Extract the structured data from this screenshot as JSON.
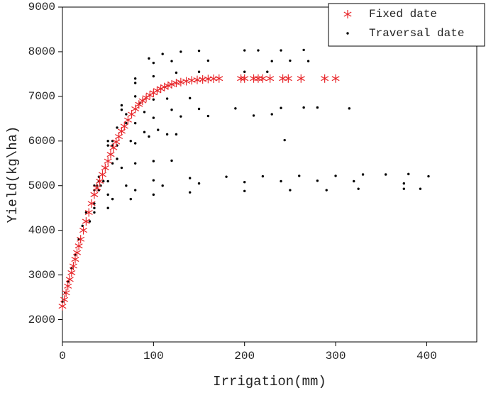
{
  "chart_data": {
    "type": "scatter",
    "x_label": "Irrigation(mm)",
    "y_label": "Yield(kg\\ha)",
    "xlim": [
      0,
      455
    ],
    "ylim": [
      1500,
      9000
    ],
    "xticks": [
      0,
      100,
      200,
      300,
      400
    ],
    "yticks": [
      2000,
      3000,
      4000,
      5000,
      6000,
      7000,
      8000,
      9000
    ],
    "legend": "upper right",
    "series": [
      {
        "name": "Fixed date",
        "color": "#e8262a",
        "marker": "asterisk",
        "x": [
          0,
          2,
          4,
          6,
          8,
          10,
          12,
          14,
          16,
          18,
          20,
          23,
          26,
          29,
          32,
          35,
          38,
          41,
          44,
          47,
          50,
          53,
          56,
          59,
          62,
          65,
          68,
          72,
          76,
          80,
          84,
          88,
          92,
          96,
          100,
          104,
          108,
          112,
          116,
          120,
          125,
          130,
          136,
          142,
          148,
          154,
          160,
          166,
          172,
          196,
          200,
          210,
          215,
          220,
          228,
          242,
          248,
          262,
          288,
          300
        ],
        "values": [
          2300,
          2450,
          2600,
          2750,
          2900,
          3050,
          3200,
          3350,
          3500,
          3650,
          3800,
          4000,
          4200,
          4400,
          4600,
          4800,
          4950,
          5100,
          5250,
          5400,
          5550,
          5700,
          5850,
          5980,
          6100,
          6220,
          6330,
          6470,
          6600,
          6720,
          6820,
          6900,
          6970,
          7030,
          7080,
          7130,
          7170,
          7210,
          7240,
          7270,
          7300,
          7320,
          7340,
          7360,
          7370,
          7380,
          7390,
          7395,
          7400,
          7400,
          7400,
          7400,
          7400,
          7400,
          7400,
          7400,
          7400,
          7400,
          7400,
          7400
        ]
      },
      {
        "name": "Traversal date",
        "color": "#000000",
        "marker": "dot",
        "x": [
          0,
          3,
          6,
          10,
          14,
          18,
          22,
          26,
          35,
          50,
          65,
          80,
          95,
          110,
          130,
          150,
          200,
          215,
          240,
          265,
          35,
          50,
          65,
          80,
          100,
          120,
          160,
          230,
          250,
          270,
          40,
          60,
          80,
          100,
          125,
          150,
          200,
          225,
          40,
          55,
          70,
          85,
          100,
          115,
          140,
          38,
          55,
          70,
          90,
          120,
          150,
          190,
          240,
          265,
          280,
          315,
          42,
          60,
          80,
          100,
          130,
          160,
          210,
          230,
          40,
          55,
          75,
          90,
          105,
          45,
          60,
          80,
          95,
          115,
          125,
          35,
          50,
          65,
          80,
          100,
          120,
          35,
          50,
          70,
          100,
          140,
          180,
          220,
          260,
          300,
          330,
          355,
          380,
          402,
          35,
          55,
          80,
          110,
          150,
          200,
          240,
          280,
          320,
          375,
          30,
          50,
          75,
          100,
          140,
          200,
          250,
          290,
          325,
          375,
          393,
          244
        ],
        "values": [
          2400,
          2600,
          2850,
          3150,
          3450,
          3800,
          4100,
          4400,
          5000,
          6000,
          6800,
          7400,
          7850,
          7950,
          8000,
          8020,
          8030,
          8030,
          8030,
          8040,
          4900,
          5900,
          6700,
          7300,
          7750,
          7790,
          7800,
          7790,
          7800,
          7790,
          5100,
          6300,
          7000,
          7450,
          7530,
          7550,
          7550,
          7550,
          5200,
          6000,
          6600,
          6850,
          6930,
          6950,
          6960,
          5000,
          5900,
          6400,
          6650,
          6700,
          6720,
          6730,
          6740,
          6750,
          6750,
          6730,
          5000,
          5900,
          6400,
          6520,
          6550,
          6560,
          6570,
          6600,
          4900,
          5500,
          6000,
          6200,
          6250,
          5100,
          5600,
          5950,
          6100,
          6150,
          6150,
          4600,
          5100,
          5400,
          5500,
          5550,
          5560,
          4500,
          4800,
          5000,
          5120,
          5170,
          5200,
          5210,
          5220,
          5220,
          5250,
          5250,
          5260,
          5210,
          4400,
          4700,
          4900,
          5000,
          5050,
          5080,
          5100,
          5110,
          5100,
          5050,
          4200,
          4500,
          4700,
          4800,
          4850,
          4880,
          4900,
          4900,
          4930,
          4930,
          4930,
          6020
        ]
      }
    ]
  }
}
